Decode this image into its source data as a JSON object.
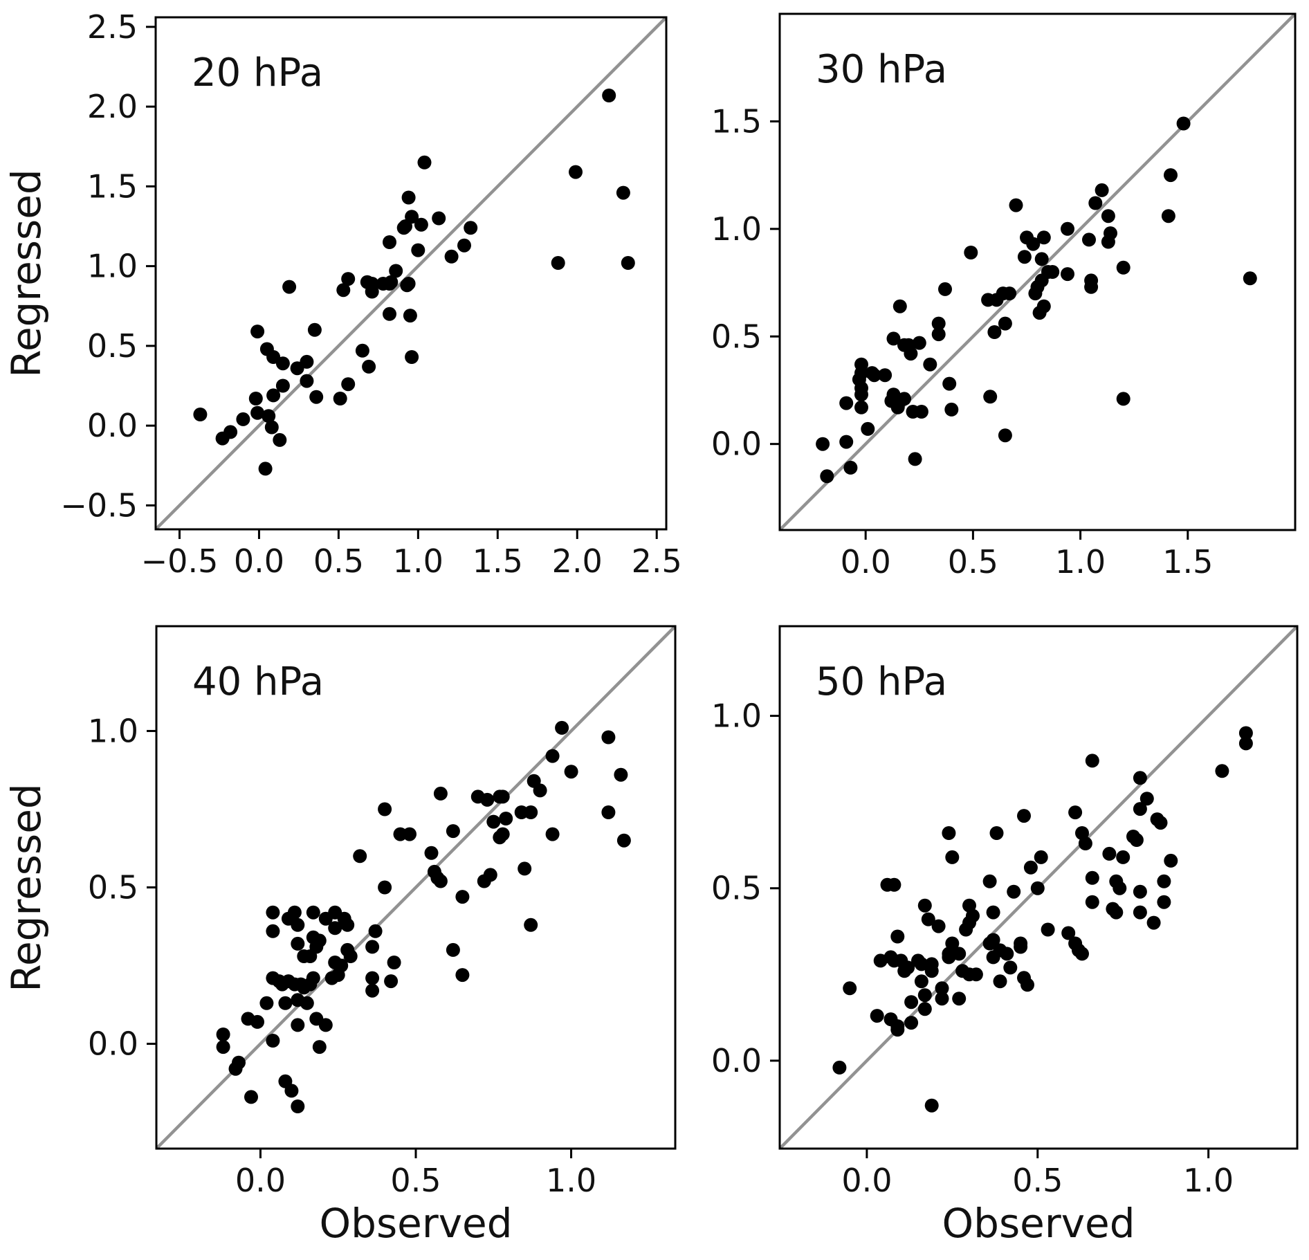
{
  "figure_title": "",
  "labels": {
    "y_axis": "Regressed",
    "x_axis": "Observed"
  },
  "colors": {
    "marker": "#000000",
    "identity_line": "#929292",
    "spine": "#000000",
    "background": "#ffffff"
  },
  "chart_data": [
    {
      "type": "scatter",
      "title": "20 hPa",
      "xlabel": "",
      "ylabel": "Regressed",
      "xlim": [
        -0.65,
        2.56
      ],
      "ylim": [
        -0.65,
        2.56
      ],
      "xtick_values": [
        -0.5,
        0.0,
        0.5,
        1.0,
        1.5,
        2.0,
        2.5
      ],
      "xtick_labels": [
        "−0.5",
        "0.0",
        "0.5",
        "1.0",
        "1.5",
        "2.0",
        "2.5"
      ],
      "ytick_values": [
        -0.5,
        0.0,
        0.5,
        1.0,
        1.5,
        2.0,
        2.5
      ],
      "ytick_labels": [
        "−0.5",
        "0.0",
        "0.5",
        "1.0",
        "1.5",
        "2.0",
        "2.5"
      ],
      "identity_line": true,
      "grid": false,
      "points": [
        [
          -0.37,
          0.07
        ],
        [
          -0.23,
          -0.08
        ],
        [
          -0.18,
          -0.04
        ],
        [
          -0.1,
          0.04
        ],
        [
          -0.02,
          0.17
        ],
        [
          -0.01,
          0.08
        ],
        [
          -0.01,
          0.59
        ],
        [
          0.04,
          -0.27
        ],
        [
          0.05,
          0.48
        ],
        [
          0.06,
          0.06
        ],
        [
          0.08,
          -0.01
        ],
        [
          0.09,
          0.43
        ],
        [
          0.09,
          0.19
        ],
        [
          0.13,
          -0.09
        ],
        [
          0.15,
          0.39
        ],
        [
          0.15,
          0.25
        ],
        [
          0.19,
          0.87
        ],
        [
          0.24,
          0.36
        ],
        [
          0.3,
          0.4
        ],
        [
          0.3,
          0.28
        ],
        [
          0.35,
          0.6
        ],
        [
          0.36,
          0.18
        ],
        [
          0.51,
          0.17
        ],
        [
          0.53,
          0.85
        ],
        [
          0.56,
          0.92
        ],
        [
          0.56,
          0.26
        ],
        [
          0.65,
          0.47
        ],
        [
          0.68,
          0.9
        ],
        [
          0.69,
          0.37
        ],
        [
          0.71,
          0.89
        ],
        [
          0.71,
          0.84
        ],
        [
          0.78,
          0.89
        ],
        [
          0.82,
          0.89
        ],
        [
          0.82,
          1.15
        ],
        [
          0.82,
          0.7
        ],
        [
          0.83,
          0.9
        ],
        [
          0.86,
          0.97
        ],
        [
          0.91,
          1.24
        ],
        [
          0.92,
          1.25
        ],
        [
          0.93,
          0.88
        ],
        [
          0.94,
          0.89
        ],
        [
          0.94,
          1.43
        ],
        [
          0.95,
          0.69
        ],
        [
          0.96,
          1.31
        ],
        [
          0.96,
          0.43
        ],
        [
          1.0,
          1.1
        ],
        [
          1.02,
          1.26
        ],
        [
          1.04,
          1.65
        ],
        [
          1.13,
          1.3
        ],
        [
          1.21,
          1.06
        ],
        [
          1.29,
          1.13
        ],
        [
          1.33,
          1.24
        ],
        [
          1.88,
          1.02
        ],
        [
          1.99,
          1.59
        ],
        [
          2.2,
          2.07
        ],
        [
          2.29,
          1.46
        ],
        [
          2.32,
          1.02
        ]
      ]
    },
    {
      "type": "scatter",
      "title": "30 hPa",
      "xlabel": "",
      "ylabel": "",
      "xlim": [
        -0.4,
        2.0
      ],
      "ylim": [
        -0.4,
        2.0
      ],
      "xtick_values": [
        0.0,
        0.5,
        1.0,
        1.5
      ],
      "xtick_labels": [
        "0.0",
        "0.5",
        "1.0",
        "1.5"
      ],
      "ytick_values": [
        0.0,
        0.5,
        1.0,
        1.5
      ],
      "ytick_labels": [
        "0.0",
        "0.5",
        "1.0",
        "1.5"
      ],
      "identity_line": true,
      "grid": false,
      "points": [
        [
          -0.2,
          0.0
        ],
        [
          -0.18,
          -0.15
        ],
        [
          -0.09,
          0.19
        ],
        [
          -0.09,
          0.01
        ],
        [
          -0.07,
          -0.11
        ],
        [
          -0.03,
          0.3
        ],
        [
          -0.02,
          0.37
        ],
        [
          -0.02,
          0.33
        ],
        [
          -0.02,
          0.26
        ],
        [
          -0.02,
          0.23
        ],
        [
          -0.02,
          0.17
        ],
        [
          0.01,
          0.07
        ],
        [
          0.03,
          0.33
        ],
        [
          0.04,
          0.32
        ],
        [
          0.09,
          0.32
        ],
        [
          0.12,
          0.2
        ],
        [
          0.13,
          0.49
        ],
        [
          0.13,
          0.23
        ],
        [
          0.14,
          0.21
        ],
        [
          0.15,
          0.17
        ],
        [
          0.16,
          0.64
        ],
        [
          0.16,
          0.2
        ],
        [
          0.18,
          0.46
        ],
        [
          0.18,
          0.21
        ],
        [
          0.2,
          0.46
        ],
        [
          0.21,
          0.42
        ],
        [
          0.22,
          0.15
        ],
        [
          0.23,
          -0.07
        ],
        [
          0.25,
          0.47
        ],
        [
          0.26,
          0.15
        ],
        [
          0.3,
          0.37
        ],
        [
          0.34,
          0.56
        ],
        [
          0.34,
          0.51
        ],
        [
          0.37,
          0.72
        ],
        [
          0.39,
          0.28
        ],
        [
          0.4,
          0.16
        ],
        [
          0.49,
          0.89
        ],
        [
          0.57,
          0.67
        ],
        [
          0.58,
          0.22
        ],
        [
          0.6,
          0.52
        ],
        [
          0.61,
          0.67
        ],
        [
          0.64,
          0.7
        ],
        [
          0.65,
          0.56
        ],
        [
          0.65,
          0.04
        ],
        [
          0.67,
          0.7
        ],
        [
          0.7,
          1.11
        ],
        [
          0.74,
          0.87
        ],
        [
          0.75,
          0.96
        ],
        [
          0.78,
          0.93
        ],
        [
          0.79,
          0.7
        ],
        [
          0.8,
          0.73
        ],
        [
          0.81,
          0.61
        ],
        [
          0.82,
          0.86
        ],
        [
          0.82,
          0.76
        ],
        [
          0.83,
          0.96
        ],
        [
          0.83,
          0.64
        ],
        [
          0.85,
          0.8
        ],
        [
          0.87,
          0.8
        ],
        [
          0.94,
          1.0
        ],
        [
          0.94,
          0.79
        ],
        [
          1.04,
          0.95
        ],
        [
          1.05,
          0.76
        ],
        [
          1.05,
          0.73
        ],
        [
          1.07,
          1.12
        ],
        [
          1.1,
          1.18
        ],
        [
          1.13,
          1.06
        ],
        [
          1.14,
          0.98
        ],
        [
          1.13,
          0.94
        ],
        [
          1.2,
          0.82
        ],
        [
          1.2,
          0.21
        ],
        [
          1.41,
          1.06
        ],
        [
          1.42,
          1.25
        ],
        [
          1.48,
          1.49
        ],
        [
          1.79,
          0.77
        ]
      ]
    },
    {
      "type": "scatter",
      "title": "40 hPa",
      "xlabel": "Observed",
      "ylabel": "Regressed",
      "xlim": [
        -0.335,
        1.335
      ],
      "ylim": [
        -0.335,
        1.335
      ],
      "xtick_values": [
        0.0,
        0.5,
        1.0
      ],
      "xtick_labels": [
        "0.0",
        "0.5",
        "1.0"
      ],
      "ytick_values": [
        0.0,
        0.5,
        1.0
      ],
      "ytick_labels": [
        "0.0",
        "0.5",
        "1.0"
      ],
      "identity_line": true,
      "grid": false,
      "points": [
        [
          -0.12,
          0.03
        ],
        [
          -0.12,
          -0.01
        ],
        [
          -0.08,
          -0.08
        ],
        [
          -0.07,
          -0.06
        ],
        [
          -0.04,
          0.08
        ],
        [
          -0.03,
          -0.17
        ],
        [
          -0.01,
          0.07
        ],
        [
          0.02,
          0.13
        ],
        [
          0.04,
          0.42
        ],
        [
          0.04,
          0.36
        ],
        [
          0.04,
          0.21
        ],
        [
          0.04,
          0.01
        ],
        [
          0.06,
          0.2
        ],
        [
          0.07,
          0.19
        ],
        [
          0.08,
          0.13
        ],
        [
          0.08,
          -0.12
        ],
        [
          0.09,
          0.4
        ],
        [
          0.09,
          0.2
        ],
        [
          0.1,
          -0.15
        ],
        [
          0.11,
          0.42
        ],
        [
          0.11,
          0.19
        ],
        [
          0.12,
          0.38
        ],
        [
          0.12,
          0.32
        ],
        [
          0.12,
          0.14
        ],
        [
          0.12,
          0.06
        ],
        [
          0.12,
          -0.2
        ],
        [
          0.13,
          0.19
        ],
        [
          0.14,
          0.28
        ],
        [
          0.14,
          0.18
        ],
        [
          0.15,
          0.13
        ],
        [
          0.16,
          0.28
        ],
        [
          0.16,
          0.19
        ],
        [
          0.17,
          0.42
        ],
        [
          0.17,
          0.34
        ],
        [
          0.17,
          0.21
        ],
        [
          0.18,
          0.31
        ],
        [
          0.18,
          0.08
        ],
        [
          0.19,
          0.33
        ],
        [
          0.19,
          -0.01
        ],
        [
          0.21,
          0.4
        ],
        [
          0.21,
          0.06
        ],
        [
          0.23,
          0.21
        ],
        [
          0.24,
          0.42
        ],
        [
          0.24,
          0.37
        ],
        [
          0.24,
          0.26
        ],
        [
          0.25,
          0.22
        ],
        [
          0.26,
          0.25
        ],
        [
          0.27,
          0.4
        ],
        [
          0.28,
          0.38
        ],
        [
          0.28,
          0.3
        ],
        [
          0.29,
          0.28
        ],
        [
          0.32,
          0.6
        ],
        [
          0.36,
          0.31
        ],
        [
          0.36,
          0.21
        ],
        [
          0.36,
          0.17
        ],
        [
          0.37,
          0.36
        ],
        [
          0.4,
          0.75
        ],
        [
          0.4,
          0.5
        ],
        [
          0.42,
          0.2
        ],
        [
          0.43,
          0.26
        ],
        [
          0.45,
          0.67
        ],
        [
          0.48,
          0.67
        ],
        [
          0.55,
          0.61
        ],
        [
          0.56,
          0.55
        ],
        [
          0.57,
          0.53
        ],
        [
          0.58,
          0.52
        ],
        [
          0.58,
          0.8
        ],
        [
          0.62,
          0.68
        ],
        [
          0.62,
          0.3
        ],
        [
          0.65,
          0.47
        ],
        [
          0.65,
          0.22
        ],
        [
          0.7,
          0.79
        ],
        [
          0.72,
          0.52
        ],
        [
          0.73,
          0.78
        ],
        [
          0.74,
          0.54
        ],
        [
          0.75,
          0.71
        ],
        [
          0.77,
          0.79
        ],
        [
          0.77,
          0.66
        ],
        [
          0.78,
          0.79
        ],
        [
          0.78,
          0.67
        ],
        [
          0.79,
          0.72
        ],
        [
          0.84,
          0.74
        ],
        [
          0.85,
          0.56
        ],
        [
          0.87,
          0.74
        ],
        [
          0.87,
          0.38
        ],
        [
          0.88,
          0.84
        ],
        [
          0.9,
          0.81
        ],
        [
          0.94,
          0.92
        ],
        [
          0.94,
          0.67
        ],
        [
          0.97,
          1.01
        ],
        [
          1.0,
          0.87
        ],
        [
          1.12,
          0.98
        ],
        [
          1.12,
          0.74
        ],
        [
          1.16,
          0.86
        ],
        [
          1.17,
          0.65
        ]
      ]
    },
    {
      "type": "scatter",
      "title": "50 hPa",
      "xlabel": "Observed",
      "ylabel": "",
      "xlim": [
        -0.255,
        1.26
      ],
      "ylim": [
        -0.255,
        1.26
      ],
      "xtick_values": [
        0.0,
        0.5,
        1.0
      ],
      "xtick_labels": [
        "0.0",
        "0.5",
        "1.0"
      ],
      "ytick_values": [
        0.0,
        0.5,
        1.0
      ],
      "ytick_labels": [
        "0.0",
        "0.5",
        "1.0"
      ],
      "identity_line": true,
      "grid": false,
      "points": [
        [
          -0.08,
          -0.02
        ],
        [
          -0.05,
          0.21
        ],
        [
          0.03,
          0.13
        ],
        [
          0.04,
          0.29
        ],
        [
          0.06,
          0.51
        ],
        [
          0.07,
          0.3
        ],
        [
          0.07,
          0.12
        ],
        [
          0.08,
          0.51
        ],
        [
          0.08,
          0.29
        ],
        [
          0.09,
          0.36
        ],
        [
          0.09,
          0.1
        ],
        [
          0.09,
          0.09
        ],
        [
          0.1,
          0.29
        ],
        [
          0.11,
          0.26
        ],
        [
          0.12,
          0.27
        ],
        [
          0.13,
          0.17
        ],
        [
          0.13,
          0.11
        ],
        [
          0.15,
          0.29
        ],
        [
          0.16,
          0.28
        ],
        [
          0.16,
          0.23
        ],
        [
          0.17,
          0.45
        ],
        [
          0.17,
          0.19
        ],
        [
          0.17,
          0.15
        ],
        [
          0.18,
          0.41
        ],
        [
          0.19,
          0.28
        ],
        [
          0.19,
          0.26
        ],
        [
          0.19,
          -0.13
        ],
        [
          0.21,
          0.39
        ],
        [
          0.22,
          0.21
        ],
        [
          0.22,
          0.18
        ],
        [
          0.24,
          0.66
        ],
        [
          0.24,
          0.31
        ],
        [
          0.24,
          0.3
        ],
        [
          0.25,
          0.59
        ],
        [
          0.25,
          0.34
        ],
        [
          0.25,
          0.31
        ],
        [
          0.27,
          0.31
        ],
        [
          0.27,
          0.18
        ],
        [
          0.28,
          0.26
        ],
        [
          0.29,
          0.38
        ],
        [
          0.3,
          0.45
        ],
        [
          0.3,
          0.4
        ],
        [
          0.3,
          0.25
        ],
        [
          0.31,
          0.42
        ],
        [
          0.32,
          0.25
        ],
        [
          0.36,
          0.52
        ],
        [
          0.36,
          0.34
        ],
        [
          0.37,
          0.43
        ],
        [
          0.37,
          0.35
        ],
        [
          0.37,
          0.3
        ],
        [
          0.38,
          0.66
        ],
        [
          0.39,
          0.32
        ],
        [
          0.39,
          0.23
        ],
        [
          0.41,
          0.31
        ],
        [
          0.42,
          0.27
        ],
        [
          0.43,
          0.49
        ],
        [
          0.45,
          0.34
        ],
        [
          0.45,
          0.33
        ],
        [
          0.46,
          0.71
        ],
        [
          0.46,
          0.24
        ],
        [
          0.47,
          0.22
        ],
        [
          0.48,
          0.56
        ],
        [
          0.5,
          0.5
        ],
        [
          0.51,
          0.59
        ],
        [
          0.53,
          0.38
        ],
        [
          0.59,
          0.37
        ],
        [
          0.61,
          0.34
        ],
        [
          0.62,
          0.32
        ],
        [
          0.63,
          0.31
        ],
        [
          0.61,
          0.72
        ],
        [
          0.63,
          0.66
        ],
        [
          0.64,
          0.63
        ],
        [
          0.66,
          0.87
        ],
        [
          0.66,
          0.53
        ],
        [
          0.66,
          0.46
        ],
        [
          0.71,
          0.6
        ],
        [
          0.72,
          0.44
        ],
        [
          0.73,
          0.52
        ],
        [
          0.73,
          0.43
        ],
        [
          0.74,
          0.5
        ],
        [
          0.75,
          0.59
        ],
        [
          0.78,
          0.65
        ],
        [
          0.79,
          0.64
        ],
        [
          0.8,
          0.82
        ],
        [
          0.8,
          0.73
        ],
        [
          0.8,
          0.49
        ],
        [
          0.8,
          0.43
        ],
        [
          0.82,
          0.76
        ],
        [
          0.84,
          0.4
        ],
        [
          0.85,
          0.7
        ],
        [
          0.86,
          0.69
        ],
        [
          0.87,
          0.52
        ],
        [
          0.87,
          0.46
        ],
        [
          0.89,
          0.58
        ],
        [
          1.04,
          0.84
        ],
        [
          1.11,
          0.95
        ],
        [
          1.11,
          0.92
        ]
      ]
    }
  ]
}
